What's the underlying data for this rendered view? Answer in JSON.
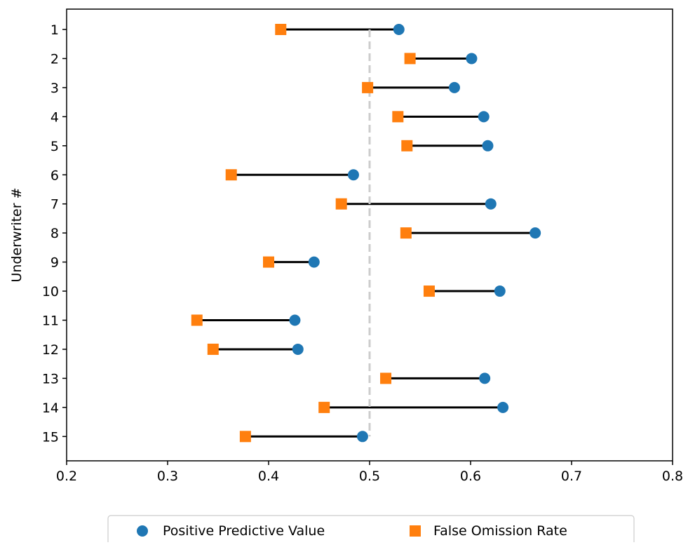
{
  "chart_data": {
    "type": "scatter",
    "ylabel": "Underwriter #",
    "xlabel": "",
    "xlim": [
      0.2,
      0.8
    ],
    "x_ticks": [
      "0.2",
      "0.3",
      "0.4",
      "0.5",
      "0.6",
      "0.7",
      "0.8"
    ],
    "categories": [
      "1",
      "2",
      "3",
      "4",
      "5",
      "6",
      "7",
      "8",
      "9",
      "10",
      "11",
      "12",
      "13",
      "14",
      "15"
    ],
    "series": [
      {
        "name": "Positive Predictive Value",
        "marker": "circle",
        "color": "#1f77b4",
        "values": [
          0.529,
          0.601,
          0.584,
          0.613,
          0.617,
          0.484,
          0.62,
          0.664,
          0.445,
          0.629,
          0.426,
          0.429,
          0.614,
          0.632,
          0.493
        ]
      },
      {
        "name": "False Omission Rate",
        "marker": "square",
        "color": "#ff7f0e",
        "values": [
          0.412,
          0.54,
          0.498,
          0.528,
          0.537,
          0.363,
          0.472,
          0.536,
          0.4,
          0.559,
          0.329,
          0.345,
          0.516,
          0.455,
          0.377
        ]
      }
    ],
    "reference_line": {
      "x": 0.5,
      "style": "dashed",
      "color": "#cccccc"
    },
    "connector_color": "#000000",
    "grid": false,
    "legend_position": "bottom-center"
  }
}
